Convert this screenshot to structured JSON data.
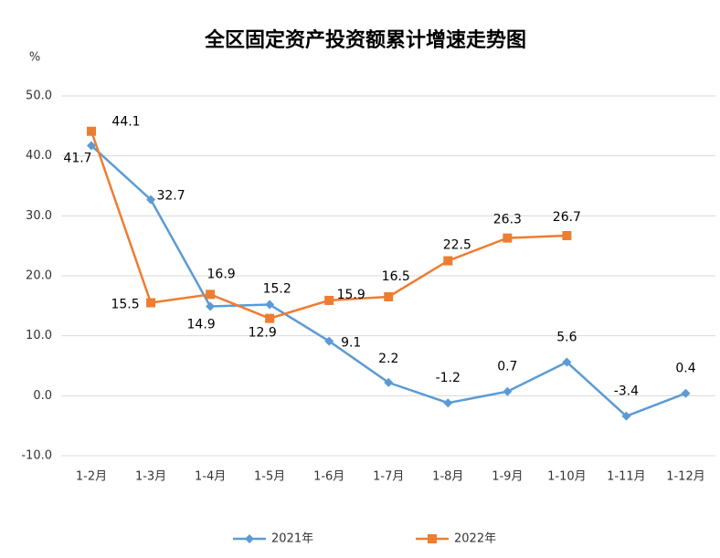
{
  "chart_data": {
    "type": "line",
    "title": "全区固定资产投资额累计增速走势图",
    "y_unit": "%",
    "categories": [
      "1-2月",
      "1-3月",
      "1-4月",
      "1-5月",
      "1-6月",
      "1-7月",
      "1-8月",
      "1-9月",
      "1-10月",
      "1-11月",
      "1-12月"
    ],
    "series": [
      {
        "name": "2021年",
        "color": "#5b9bd5",
        "marker": "diamond",
        "values": [
          41.7,
          32.7,
          14.9,
          15.2,
          9.1,
          2.2,
          -1.2,
          0.7,
          5.6,
          -3.4,
          0.4
        ]
      },
      {
        "name": "2022年",
        "color": "#ed7d31",
        "marker": "square",
        "values": [
          44.1,
          15.5,
          16.9,
          12.9,
          15.9,
          16.5,
          22.5,
          26.3,
          26.7,
          null,
          null
        ]
      }
    ],
    "ylim": [
      -10,
      50
    ],
    "yticks": [
      {
        "value": -10,
        "label": "-10.0"
      },
      {
        "value": 0,
        "label": "0.0"
      },
      {
        "value": 10,
        "label": "10.0"
      },
      {
        "value": 20,
        "label": "20.0"
      },
      {
        "value": 30,
        "label": "30.0"
      },
      {
        "value": 40,
        "label": "40.0"
      },
      {
        "value": 50,
        "label": "50.0"
      }
    ],
    "grid": true,
    "legend": "bottom"
  }
}
